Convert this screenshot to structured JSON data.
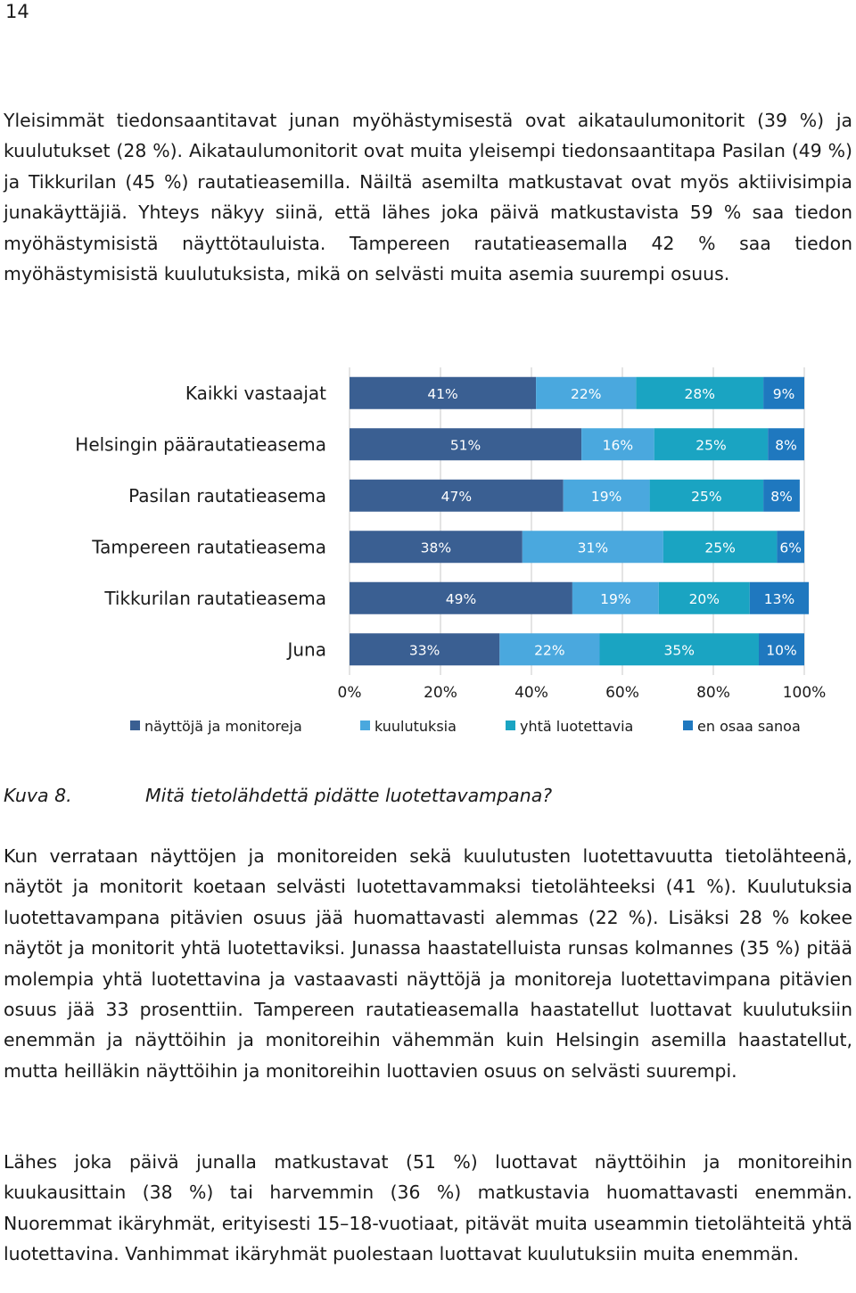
{
  "page_number": "14",
  "paragraphs": [
    "Yleisimmät tiedonsaantitavat junan myöhästymisestä ovat aikataulumonitorit (39 %) ja kuulutukset (28 %). Aikataulumonitorit ovat muita yleisempi tiedonsaantitapa Pasilan (49 %) ja Tikkurilan (45 %) rautatieasemilla. Näiltä asemilta matkustavat ovat myös aktiivisimpia junakäyttäjiä. Yhteys näkyy siinä, että lähes joka päivä matkustavista 59 % saa tiedon myöhästymisistä näyttötauluista. Tampereen rautatieasemalla 42 % saa tiedon myöhästymisistä kuulutuksista, mikä on selvästi muita asemia suurempi osuus.",
    "Kun verrataan näyttöjen ja monitoreiden sekä kuulutusten luotettavuutta tietolähteenä, näytöt ja monitorit koetaan selvästi luotettavammaksi tietolähteeksi (41 %). Kuulutuksia luotettavampana pitävien osuus jää huomattavasti alemmas (22 %). Lisäksi 28 % kokee näytöt ja monitorit yhtä luotettaviksi. Junassa haastatelluista runsas kolmannes (35 %) pitää molempia yhtä luotettavina ja vastaavasti näyttöjä ja monitoreja luotettavimpana pitävien osuus jää 33 prosenttiin. Tampereen rautatieasemalla haastatellut luottavat kuulutuksiin enemmän ja näyttöihin ja monitoreihin vähemmän kuin Helsingin asemilla haastatellut, mutta heilläkin näyttöihin ja monitoreihin luottavien osuus on selvästi suurempi.",
    "Lähes joka päivä junalla matkustavat (51 %) luottavat näyttöihin ja monitoreihin kuukausittain (38 %) tai harvemmin (36 %) matkustavia huomattavasti enemmän. Nuoremmat ikäryhmät, erityisesti 15–18-vuotiaat, pitävät muita useammin tietolähteitä yhtä luotettavina. Vanhimmat ikäryhmät puolestaan luottavat kuulutuksiin muita enemmän."
  ],
  "caption": {
    "label": "Kuva 8.",
    "text": "Mitä tietolähdettä pidätte luotettavampana?"
  },
  "chart_data": {
    "type": "bar",
    "orientation": "horizontal",
    "stacked": true,
    "categories": [
      "Kaikki vastaajat",
      "Helsingin päärautatieasema",
      "Pasilan rautatieasema",
      "Tampereen rautatieasema",
      "Tikkurilan rautatieasema",
      "Juna"
    ],
    "series": [
      {
        "name": "näyttöjä ja monitoreja",
        "color": "#3a5f92",
        "values": [
          41,
          51,
          47,
          38,
          49,
          33
        ]
      },
      {
        "name": "kuulutuksia",
        "color": "#4aa8de",
        "values": [
          22,
          16,
          19,
          31,
          19,
          22
        ]
      },
      {
        "name": "yhtä luotettavia",
        "color": "#1aa4c2",
        "values": [
          28,
          25,
          25,
          25,
          20,
          35
        ]
      },
      {
        "name": "en osaa sanoa",
        "color": "#1f78bf",
        "values": [
          9,
          8,
          8,
          6,
          13,
          10
        ]
      }
    ],
    "x_ticks": [
      "0%",
      "20%",
      "40%",
      "60%",
      "80%",
      "100%"
    ],
    "xlim": [
      0,
      100
    ],
    "grid": true,
    "legend_position": "bottom",
    "value_suffix": "%"
  }
}
